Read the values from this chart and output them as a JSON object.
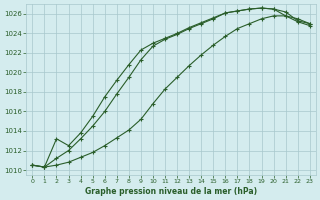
{
  "title": "Graphe pression niveau de la mer (hPa)",
  "background_color": "#d4ecee",
  "grid_color": "#a8c8cc",
  "line_color": "#2a5e2a",
  "xlim": [
    -0.5,
    23.5
  ],
  "ylim": [
    1009.5,
    1027.0
  ],
  "xticks": [
    0,
    1,
    2,
    3,
    4,
    5,
    6,
    7,
    8,
    9,
    10,
    11,
    12,
    13,
    14,
    15,
    16,
    17,
    18,
    19,
    20,
    21,
    22,
    23
  ],
  "yticks": [
    1010,
    1012,
    1014,
    1016,
    1018,
    1020,
    1022,
    1024,
    1026
  ],
  "series": [
    [
      1010.5,
      1010.3,
      1011.2,
      1012.0,
      1013.2,
      1014.5,
      1016.0,
      1017.8,
      1019.5,
      1021.3,
      1022.7,
      1023.4,
      1023.9,
      1024.5,
      1025.0,
      1025.5,
      1026.1,
      1026.3,
      1026.5,
      1026.6,
      1026.5,
      1026.2,
      1025.3,
      1025.0
    ],
    [
      1010.5,
      1010.3,
      1013.2,
      1012.5,
      1013.8,
      1015.5,
      1017.5,
      1019.2,
      1020.8,
      1022.3,
      1023.0,
      1023.5,
      1024.0,
      1024.6,
      1025.1,
      1025.6,
      1026.1,
      1026.3,
      1026.5,
      1026.6,
      1026.5,
      1025.8,
      1025.2,
      1024.8
    ],
    [
      1010.5,
      1010.3,
      1010.5,
      1010.8,
      1011.3,
      1011.8,
      1012.5,
      1013.3,
      1014.1,
      1015.2,
      1016.8,
      1018.3,
      1019.5,
      1020.7,
      1021.8,
      1022.8,
      1023.7,
      1024.5,
      1025.0,
      1025.5,
      1025.8,
      1025.8,
      1025.5,
      1025.0
    ]
  ]
}
